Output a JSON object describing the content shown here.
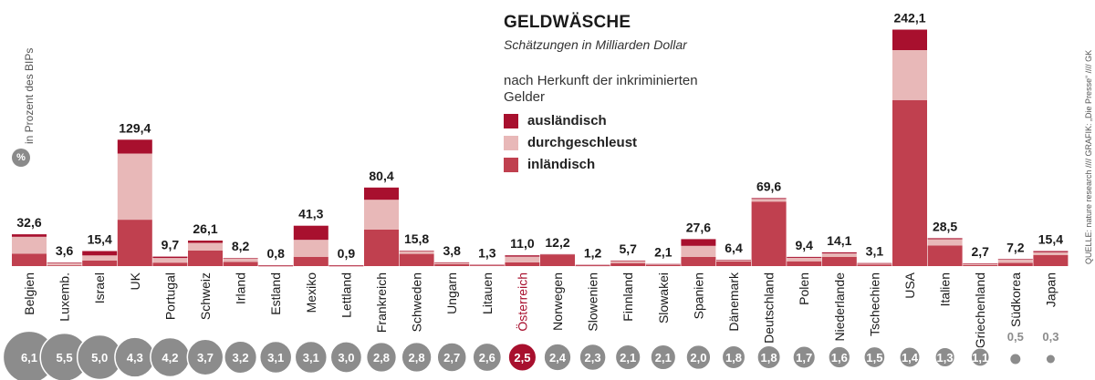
{
  "chart_data": {
    "type": "bar",
    "title": "GELDWÄSCHE",
    "subtitle": "Schätzungen in Milliarden Dollar",
    "legend_intro": "nach Herkunft der inkriminierten Gelder",
    "ylim": [
      0,
      250
    ],
    "categories": [
      "Belgien",
      "Luxemb.",
      "Israel",
      "UK",
      "Portugal",
      "Schweiz",
      "Irland",
      "Estland",
      "Mexiko",
      "Lettland",
      "Frankreich",
      "Schweden",
      "Ungarn",
      "Litauen",
      "Österreich",
      "Norwegen",
      "Slowenien",
      "Finnland",
      "Slowakei",
      "Spanien",
      "Dänemark",
      "Deutschland",
      "Polen",
      "Niederlande",
      "Tschechien",
      "USA",
      "Italien",
      "Griechenland",
      "Südkorea",
      "Japan"
    ],
    "totals": [
      "32,6",
      "3,6",
      "15,4",
      "129,4",
      "9,7",
      "26,1",
      "8,2",
      "0,8",
      "41,3",
      "0,9",
      "80,4",
      "15,8",
      "3,8",
      "1,3",
      "11,0",
      "12,2",
      "1,2",
      "5,7",
      "2,1",
      "27,6",
      "6,4",
      "69,6",
      "9,4",
      "14,1",
      "3,1",
      "242,1",
      "28,5",
      "2,7",
      "7,2",
      "15,4"
    ],
    "series": [
      {
        "name": "inländisch",
        "color": "#c0404f",
        "values": [
          12.6,
          0.8,
          5.6,
          47.5,
          3.5,
          15.9,
          4.2,
          0.3,
          9.5,
          0.3,
          37.3,
          12.5,
          1.9,
          0.6,
          3.8,
          11.3,
          0.5,
          3.1,
          1.0,
          9.3,
          4.8,
          66.0,
          4.9,
          9.5,
          1.6,
          170.0,
          21.0,
          1.0,
          3.4,
          11.4
        ]
      },
      {
        "name": "durchgeschleust",
        "color": "#e8b8b8",
        "values": [
          17.5,
          2.5,
          5.3,
          67.7,
          4.8,
          7.9,
          3.5,
          0.4,
          17.3,
          0.5,
          30.6,
          2.8,
          1.6,
          0.6,
          5.9,
          0.5,
          0.6,
          2.4,
          0.9,
          11.4,
          1.1,
          2.8,
          3.6,
          3.5,
          1.3,
          51.1,
          6.5,
          1.5,
          3.6,
          2.8
        ]
      },
      {
        "name": "ausländisch",
        "color": "#a8102e",
        "values": [
          2.5,
          0.3,
          4.5,
          14.2,
          1.4,
          2.3,
          0.5,
          0.1,
          14.5,
          0.1,
          12.5,
          0.5,
          0.3,
          0.1,
          1.3,
          0.4,
          0.1,
          0.2,
          0.2,
          6.9,
          0.5,
          0.8,
          0.9,
          1.1,
          0.2,
          21.0,
          1.0,
          0.2,
          0.2,
          1.2
        ]
      }
    ],
    "highlight": "Österreich",
    "highlight_color": "#a8102e",
    "gdp_share_label": "in Prozent des BIPs",
    "gdp_share": [
      "6,1",
      "5,5",
      "5,0",
      "4,3",
      "4,2",
      "3,7",
      "3,2",
      "3,1",
      "3,1",
      "3,0",
      "2,8",
      "2,8",
      "2,7",
      "2,6",
      "2,5",
      "2,4",
      "2,3",
      "2,1",
      "2,1",
      "2,0",
      "1,8",
      "1,8",
      "1,7",
      "1,6",
      "1,5",
      "1,4",
      "1,3",
      "1,1",
      "0,5",
      "0,3"
    ],
    "gdp_share_values": [
      6.1,
      5.5,
      5.0,
      4.3,
      4.2,
      3.7,
      3.2,
      3.1,
      3.1,
      3.0,
      2.8,
      2.8,
      2.7,
      2.6,
      2.5,
      2.4,
      2.3,
      2.1,
      2.1,
      2.0,
      1.8,
      1.8,
      1.7,
      1.6,
      1.5,
      1.4,
      1.3,
      1.1,
      0.5,
      0.3
    ],
    "percent_symbol": "%",
    "source": "QUELLE: nature research  ////  GRAFIK: „Die Presse“  ////  GK"
  }
}
